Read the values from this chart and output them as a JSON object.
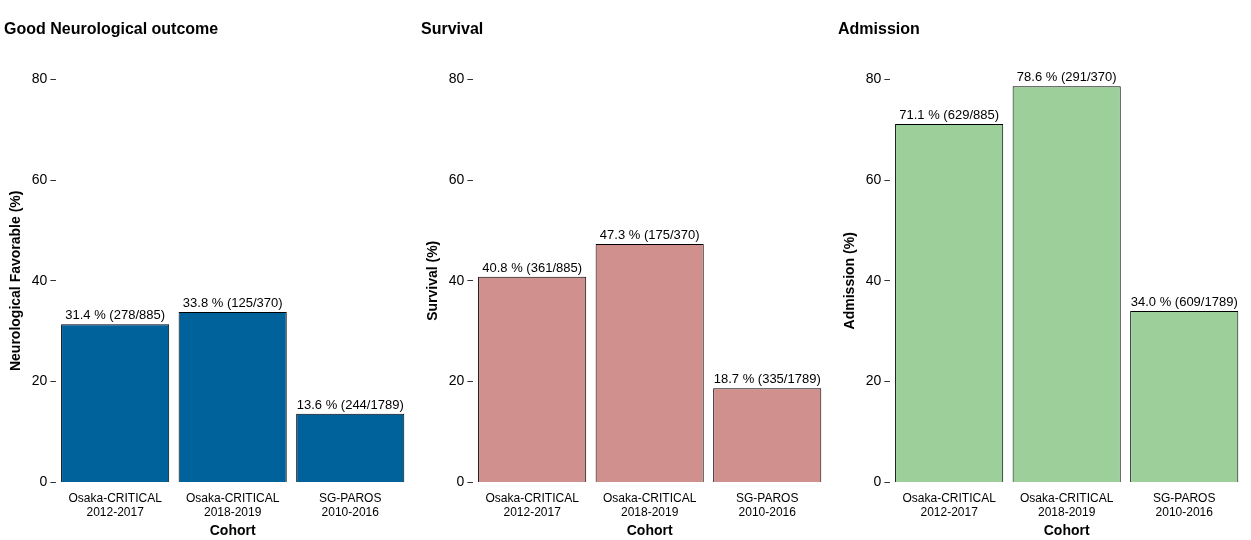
{
  "chart_data": [
    {
      "type": "bar",
      "title": "Good Neurological outcome",
      "xlabel": "Cohort",
      "ylabel": "Neurological Favorable (%)",
      "categories": [
        "Osaka-CRITICAL\n2012-2017",
        "Osaka-CRITICAL\n2018-2019",
        "SG-PAROS\n2010-2016"
      ],
      "values": [
        31.4,
        33.8,
        13.6
      ],
      "value_labels": [
        "31.4 % (278/885)",
        "33.8 % (125/370)",
        "13.6 % (244/1789)"
      ],
      "color": "#00629b",
      "ylim": [
        0,
        80
      ],
      "yticks": [
        0,
        20,
        40,
        60,
        80
      ]
    },
    {
      "type": "bar",
      "title": "Survival",
      "xlabel": "Cohort",
      "ylabel": "Survival (%)",
      "categories": [
        "Osaka-CRITICAL\n2012-2017",
        "Osaka-CRITICAL\n2018-2019",
        "SG-PAROS\n2010-2016"
      ],
      "values": [
        40.8,
        47.3,
        18.7
      ],
      "value_labels": [
        "40.8 % (361/885)",
        "47.3 % (175/370)",
        "18.7 % (335/1789)"
      ],
      "color": "#d0908d",
      "ylim": [
        0,
        80
      ],
      "yticks": [
        0,
        20,
        40,
        60,
        80
      ]
    },
    {
      "type": "bar",
      "title": "Admission",
      "xlabel": "Cohort",
      "ylabel": "Admission (%)",
      "categories": [
        "Osaka-CRITICAL\n2012-2017",
        "Osaka-CRITICAL\n2018-2019",
        "SG-PAROS\n2010-2016"
      ],
      "values": [
        71.1,
        78.6,
        34.0
      ],
      "value_labels": [
        "71.1 % (629/885)",
        "78.6 % (291/370)",
        "34.0 % (609/1789)"
      ],
      "color": "#9ccf9a",
      "ylim": [
        0,
        80
      ],
      "yticks": [
        0,
        20,
        40,
        60,
        80
      ]
    }
  ]
}
